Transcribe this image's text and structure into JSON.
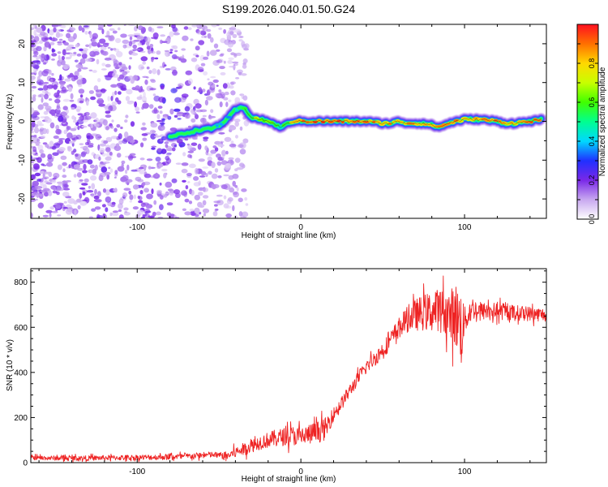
{
  "chart_data": [
    {
      "type": "heatmap",
      "title": "S199.2026.040.01.50.G24",
      "xlabel": "Height of straight line (km)",
      "ylabel": "Frequency (Hz)",
      "xlim": [
        -165,
        150
      ],
      "ylim": [
        -25,
        25
      ],
      "xticks": [
        -100,
        0,
        100
      ],
      "yticks": [
        -20,
        -10,
        0,
        10,
        20
      ],
      "colorbar": {
        "label": "Normalized spectral amplitude",
        "range": [
          0.0,
          1.0
        ],
        "ticks": [
          "0.0",
          "0.2",
          "0.4",
          "0.6",
          "0.8"
        ],
        "ticks_values": [
          0.0,
          0.2,
          0.4,
          0.6,
          0.8
        ]
      },
      "ridge": {
        "description_values": "dominant frequency track (Hz) vs height (km)",
        "x": [
          -80,
          -70,
          -60,
          -55,
          -50,
          -45,
          -40,
          -35,
          -30,
          -25,
          -20,
          -15,
          -12,
          -10,
          -5,
          0,
          10,
          20,
          30,
          40,
          50,
          55,
          60,
          65,
          70,
          75,
          80,
          85,
          90,
          95,
          100,
          110,
          120,
          125,
          130,
          140,
          148
        ],
        "y": [
          -4,
          -3,
          -2,
          -2,
          -1,
          0.5,
          3,
          3.5,
          1,
          0.5,
          0,
          -1,
          -1.5,
          -1,
          0,
          0,
          0,
          0,
          0,
          0,
          -0.5,
          -0.5,
          0,
          -0.5,
          -0.5,
          -0.5,
          -1,
          -1.5,
          -0.5,
          0,
          0.5,
          0.5,
          0,
          -0.5,
          -0.5,
          0,
          0.5
        ],
        "amp": [
          0.1,
          0.2,
          0.25,
          0.3,
          0.3,
          0.35,
          0.4,
          0.5,
          0.6,
          0.65,
          0.6,
          0.55,
          0.5,
          0.55,
          0.75,
          0.85,
          0.9,
          0.9,
          0.85,
          0.85,
          0.85,
          0.8,
          0.8,
          0.85,
          0.85,
          0.8,
          0.85,
          0.8,
          0.85,
          0.85,
          0.8,
          0.85,
          0.85,
          0.8,
          0.8,
          0.85,
          0.85
        ]
      }
    },
    {
      "type": "line",
      "xlabel": "Height of straight line (km)",
      "ylabel": "SNR (10 * v/v)",
      "xlim": [
        -165,
        150
      ],
      "ylim": [
        0,
        860
      ],
      "xticks": [
        -100,
        0,
        100
      ],
      "yticks": [
        0,
        200,
        400,
        600,
        800
      ],
      "color": "#ee2222",
      "series": [
        {
          "name": "SNR",
          "x": [
            -165,
            -150,
            -130,
            -110,
            -90,
            -70,
            -55,
            -45,
            -40,
            -35,
            -30,
            -25,
            -20,
            -15,
            -10,
            -5,
            0,
            5,
            10,
            15,
            18,
            20,
            25,
            30,
            35,
            40,
            45,
            50,
            55,
            60,
            65,
            70,
            75,
            80,
            85,
            90,
            95,
            98,
            100,
            105,
            110,
            115,
            120,
            130,
            140,
            150
          ],
          "y": [
            22,
            20,
            20,
            22,
            24,
            28,
            35,
            30,
            45,
            60,
            75,
            90,
            100,
            110,
            115,
            120,
            115,
            125,
            135,
            150,
            190,
            215,
            265,
            320,
            375,
            425,
            460,
            500,
            545,
            600,
            635,
            655,
            665,
            670,
            680,
            660,
            650,
            600,
            630,
            685,
            670,
            675,
            670,
            665,
            660,
            655
          ]
        }
      ],
      "noise_amplitude": {
        "x": [
          -165,
          -50,
          -40,
          0,
          15,
          20,
          40,
          60,
          70,
          80,
          90,
          98,
          100,
          110,
          150
        ],
        "y": [
          10,
          14,
          25,
          45,
          50,
          30,
          30,
          45,
          70,
          90,
          100,
          180,
          60,
          40,
          30
        ]
      }
    }
  ]
}
